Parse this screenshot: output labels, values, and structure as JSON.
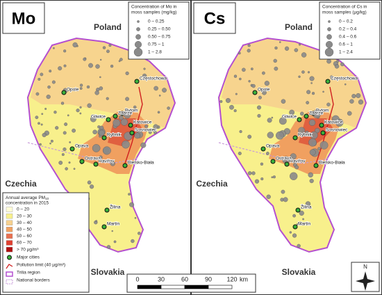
{
  "panels": [
    {
      "label": "Mo",
      "legend_title": [
        "Concentration of Mo in",
        "moss samples (mg/kg)"
      ],
      "legend_items": [
        "0 – 0.25",
        "0.25 – 0.50",
        "0.50 – 0.75",
        "0.75 – 1",
        "1 – 2.8"
      ]
    },
    {
      "label": "Cs",
      "legend_title": [
        "Concentration of Cs in",
        "moss samples (µg/kg)"
      ],
      "legend_items": [
        "0 – 0.2",
        "0.2 – 0.4",
        "0.4 – 0.6",
        "0.6 – 1",
        "1 – 2.4"
      ]
    }
  ],
  "countries": [
    "Poland",
    "Czechia",
    "Slovakia"
  ],
  "cities": [
    "Częstochowa",
    "Opole",
    "Bytom",
    "Gliwice",
    "Zabrze",
    "Katowice",
    "Sosnowiec",
    "Rybnik",
    "Opava",
    "Ostrava",
    "Havířov",
    "Bielsko-Biała",
    "Žilina",
    "Martin"
  ],
  "pm_legend": {
    "title": [
      "Annual average PM",
      "10",
      "concentration in 2015"
    ],
    "items": [
      "0 – 20",
      "20 – 30",
      "30 – 40",
      "40 – 50",
      "50 – 60",
      "60 – 70",
      "> 70 µg/m³"
    ],
    "symbols": [
      "Major cities",
      "Pollution limit (40 µg/m³)",
      "Trilia region",
      "National borders"
    ]
  },
  "scale_bar": {
    "ticks": [
      "0",
      "30",
      "60",
      "90",
      "120"
    ],
    "unit": "km"
  },
  "north": "N"
}
